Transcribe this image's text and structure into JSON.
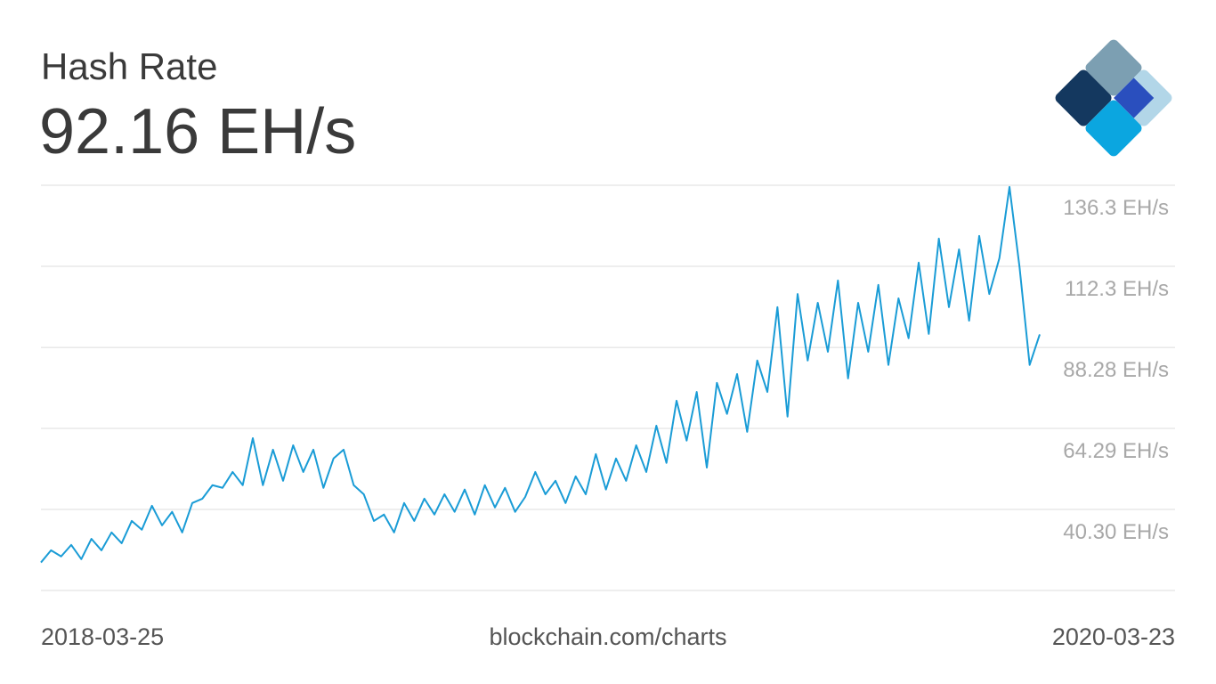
{
  "chart_data": {
    "type": "line",
    "title": "Hash Rate",
    "subtitle": "92.16 EH/s",
    "source": "blockchain.com/charts",
    "categories": [
      "2018-03-25",
      null,
      null,
      null,
      null,
      null,
      null,
      null,
      null,
      null,
      null,
      null,
      null,
      null,
      null,
      null,
      null,
      null,
      null,
      null,
      null,
      null,
      null,
      null,
      null,
      null,
      null,
      null,
      null,
      null,
      null,
      null,
      null,
      null,
      null,
      null,
      null,
      null,
      null,
      null,
      null,
      null,
      null,
      null,
      null,
      null,
      null,
      null,
      null,
      null,
      null,
      null,
      null,
      null,
      null,
      null,
      null,
      null,
      null,
      null,
      null,
      null,
      null,
      null,
      null,
      null,
      null,
      null,
      null,
      null,
      null,
      null,
      null,
      null,
      null,
      null,
      null,
      null,
      null,
      null,
      null,
      null,
      null,
      null,
      null,
      null,
      null,
      null,
      null,
      null,
      null,
      null,
      null,
      null,
      null,
      null,
      null,
      null,
      null,
      "2020-03-23"
    ],
    "values": [
      24.6,
      28.2,
      26.4,
      29.8,
      25.6,
      31.6,
      28.2,
      33.5,
      30.3,
      36.9,
      34.3,
      41.4,
      35.6,
      39.6,
      33.5,
      42.2,
      43.5,
      47.5,
      46.7,
      51.4,
      47.5,
      61.4,
      47.5,
      58.0,
      48.8,
      59.3,
      51.4,
      58.0,
      46.7,
      55.4,
      58.0,
      47.5,
      44.8,
      36.9,
      38.8,
      33.5,
      42.2,
      36.9,
      43.5,
      38.8,
      44.8,
      39.6,
      46.2,
      38.8,
      47.5,
      40.9,
      46.7,
      39.6,
      44.0,
      51.4,
      44.8,
      48.8,
      42.2,
      50.1,
      44.8,
      56.7,
      46.2,
      55.4,
      48.8,
      59.3,
      51.4,
      65.1,
      54.1,
      72.5,
      60.7,
      75.1,
      52.7,
      77.8,
      68.6,
      80.4,
      63.3,
      84.4,
      75.1,
      100.2,
      67.8,
      104.1,
      84.4,
      101.5,
      87.0,
      108.1,
      79.1,
      101.5,
      87.0,
      106.8,
      83.1,
      102.8,
      91.0,
      113.4,
      92.3,
      120.5,
      100.2,
      117.3,
      96.2,
      121.3,
      104.1,
      114.7,
      135.8,
      112.0,
      83.1,
      92.16
    ],
    "color": "#1a9cd6",
    "ylim": [
      16.31,
      136.3
    ],
    "yticks": [
      {
        "value": 136.3,
        "label": "136.3 EH/s"
      },
      {
        "value": 112.3,
        "label": "112.3 EH/s"
      },
      {
        "value": 88.28,
        "label": "88.28 EH/s"
      },
      {
        "value": 64.29,
        "label": "64.29 EH/s"
      },
      {
        "value": 40.3,
        "label": "40.30 EH/s"
      }
    ],
    "grid": true
  }
}
